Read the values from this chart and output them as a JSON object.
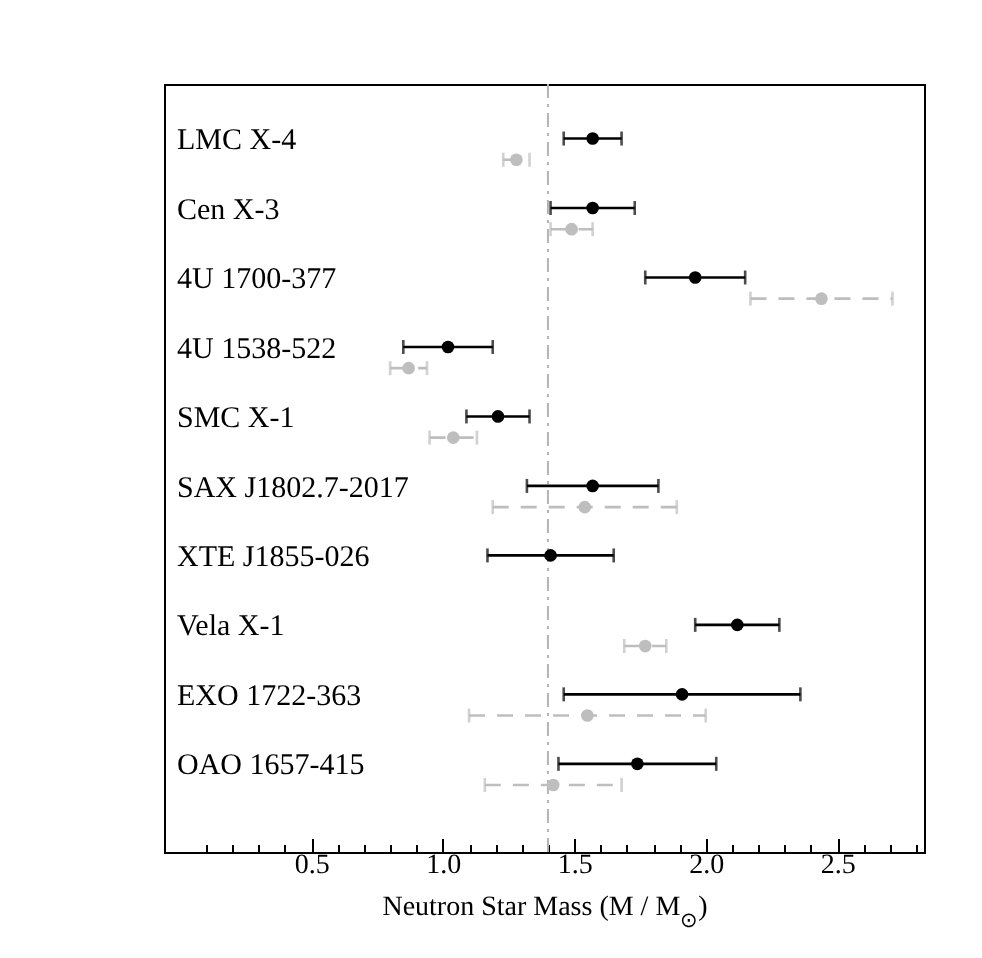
{
  "chart_data": {
    "type": "scatter",
    "orientation": "horizontal",
    "xlabel": "Neutron Star Mass (M / M$_{⊙}$)",
    "categories": [
      "LMC X-4",
      "Cen X-3",
      "4U 1700-377",
      "4U 1538-522",
      "SMC X-1",
      "SAX J1802.7-2017",
      "XTE J1855-026",
      "Vela X-1",
      "EXO 1722-363",
      "OAO 1657-415"
    ],
    "series": [
      {
        "color": "#000000",
        "line_style": "solid",
        "values": [
          1.57,
          1.57,
          1.96,
          1.02,
          1.21,
          1.57,
          1.41,
          2.12,
          1.91,
          1.74
        ],
        "errors": [
          0.11,
          0.16,
          0.19,
          0.17,
          0.12,
          0.25,
          0.24,
          0.16,
          0.45,
          0.3
        ]
      },
      {
        "color": "#bebebe",
        "line_style": "dashed",
        "values": [
          1.28,
          1.49,
          2.44,
          0.87,
          1.04,
          1.54,
          null,
          1.77,
          1.55,
          1.42
        ],
        "errors": [
          0.05,
          0.08,
          0.27,
          0.07,
          0.09,
          0.35,
          null,
          0.08,
          0.45,
          0.26
        ]
      }
    ],
    "marker": "circle",
    "xlim": [
      -0.06,
      2.83
    ],
    "xticks": [
      {
        "value": 0.1,
        "label": null
      },
      {
        "value": 0.2,
        "label": null
      },
      {
        "value": 0.3,
        "label": null
      },
      {
        "value": 0.4,
        "label": null
      },
      0.5,
      {
        "value": 0.6,
        "label": null
      },
      {
        "value": 0.7,
        "label": null
      },
      {
        "value": 0.8,
        "label": null
      },
      {
        "value": 0.9,
        "label": null
      },
      {
        "value": 1,
        "label": "1.0"
      },
      {
        "value": 1.1,
        "label": null
      },
      {
        "value": 1.2,
        "label": null
      },
      {
        "value": 1.3,
        "label": null
      },
      {
        "value": 1.4,
        "label": null
      },
      1.5,
      {
        "value": 1.6,
        "label": null
      },
      {
        "value": 1.7,
        "label": null
      },
      {
        "value": 1.8,
        "label": null
      },
      {
        "value": 1.9,
        "label": null
      },
      {
        "value": 2,
        "label": "2.0"
      },
      {
        "value": 2.1,
        "label": null
      },
      {
        "value": 2.2,
        "label": null
      },
      {
        "value": 2.3,
        "label": null
      },
      {
        "value": 2.4,
        "label": null
      },
      2.5,
      {
        "value": 2.6,
        "label": null
      },
      {
        "value": 2.7,
        "label": null
      },
      {
        "value": 2.8,
        "label": null
      }
    ],
    "ref_lines": [
      {
        "axis": "x",
        "value": 1.4,
        "color": "#b4b4b4",
        "line_style": "dashdot"
      }
    ]
  }
}
